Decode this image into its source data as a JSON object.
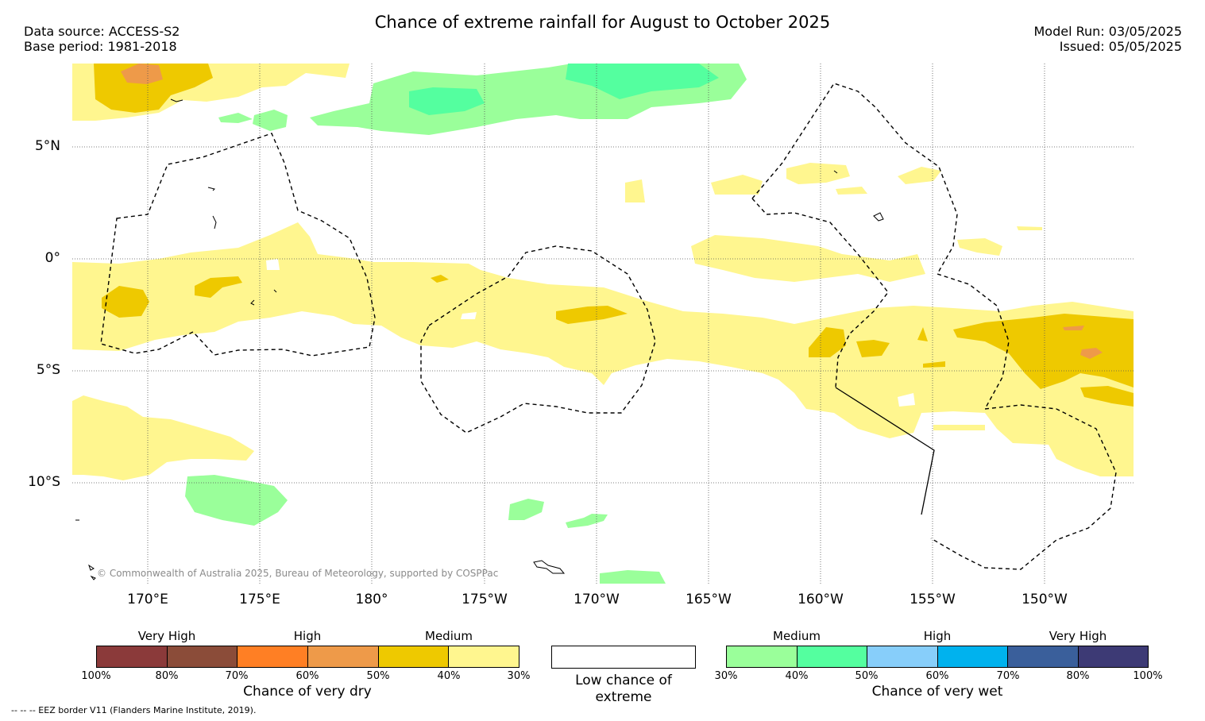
{
  "header": {
    "title": "Chance of extreme rainfall for August to October 2025",
    "data_source": "Data source: ACCESS-S2",
    "base_period": "Base period: 1981-2018",
    "model_run": "Model Run: 03/05/2025",
    "issued": "Issued: 05/05/2025"
  },
  "map": {
    "lat_labels": [
      "5°N",
      "0°",
      "5°S",
      "10°S"
    ],
    "lon_labels": [
      "170°E",
      "175°E",
      "180°",
      "175°W",
      "170°W",
      "165°W",
      "160°W",
      "155°W",
      "150°W"
    ],
    "copyright": "© Commonwealth of Australia 2025, Bureau of Meteorology, supported by COSPPac",
    "colors": {
      "dry_medium_low": "#fff68f",
      "dry_medium_high": "#eec900",
      "dry_high_low": "#ee9a49",
      "wet_medium_low": "#9aff9a",
      "wet_medium_high": "#54ff9f",
      "eez_line": "#000000",
      "grid": "#555555"
    }
  },
  "legend": {
    "dry": {
      "title": "Chance of very dry",
      "categories": [
        "Very High",
        "High",
        "Medium"
      ],
      "ticks": [
        "100%",
        "80%",
        "70%",
        "60%",
        "50%",
        "40%",
        "30%"
      ],
      "colors": [
        "#8b3a3a",
        "#8b4c39",
        "#ff7f24",
        "#ee9a49",
        "#eec900",
        "#fff68f"
      ]
    },
    "low": {
      "label": "Low chance of extreme"
    },
    "wet": {
      "title": "Chance of very wet",
      "categories": [
        "Medium",
        "High",
        "Very High"
      ],
      "ticks": [
        "30%",
        "40%",
        "50%",
        "60%",
        "70%",
        "80%",
        "100%"
      ],
      "colors": [
        "#9aff9a",
        "#54ff9f",
        "#87cefa",
        "#00b2ee",
        "#3a5f9b",
        "#3d3a75"
      ]
    }
  },
  "footer": {
    "eez_note": "--  --  -- EEZ border V11 (Flanders Marine Institute, 2019)."
  }
}
